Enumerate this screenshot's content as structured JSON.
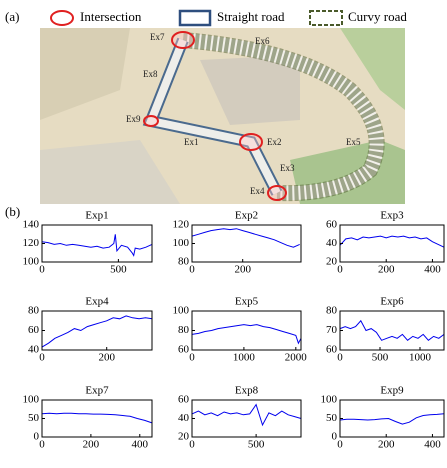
{
  "panel_a": {
    "label": "(a)",
    "legend": [
      "Intersection",
      "Straight road",
      "Curvy road"
    ],
    "map_labels": [
      "Ex1",
      "Ex2",
      "Ex3",
      "Ex4",
      "Ex5",
      "Ex6",
      "Ex7",
      "Ex8",
      "Ex9"
    ]
  },
  "panel_b": {
    "label": "(b)"
  },
  "chart_data": [
    {
      "type": "line",
      "title": "Exp1",
      "x": [
        0,
        40,
        80,
        120,
        160,
        200,
        240,
        280,
        320,
        360,
        400,
        440,
        470,
        480,
        490,
        520,
        560,
        590,
        600,
        610,
        640,
        680,
        720
      ],
      "series": [
        {
          "color": "#0000ee",
          "values": [
            122,
            121,
            119,
            120,
            118,
            119,
            118,
            117,
            116,
            117,
            115,
            116,
            120,
            130,
            112,
            118,
            116,
            110,
            107,
            115,
            114,
            116,
            119
          ]
        }
      ],
      "xlim": [
        0,
        720
      ],
      "xticks": [
        0,
        500
      ],
      "ylim": [
        100,
        140
      ],
      "yticks": [
        100,
        120,
        140
      ]
    },
    {
      "type": "line",
      "title": "Exp2",
      "x": [
        0,
        25,
        50,
        75,
        100,
        125,
        150,
        175,
        200,
        225,
        250,
        275,
        300,
        325,
        350,
        375,
        400,
        425
      ],
      "series": [
        {
          "color": "#0000ee",
          "values": [
            108,
            110,
            112,
            114,
            115,
            116,
            115,
            116,
            114,
            112,
            110,
            108,
            106,
            104,
            101,
            98,
            96,
            99
          ]
        }
      ],
      "xlim": [
        0,
        430
      ],
      "xticks": [
        0,
        200
      ],
      "ylim": [
        80,
        120
      ],
      "yticks": [
        80,
        100,
        120
      ]
    },
    {
      "type": "line",
      "title": "Exp3",
      "x": [
        0,
        25,
        50,
        75,
        100,
        125,
        150,
        175,
        200,
        225,
        250,
        275,
        300,
        325,
        350,
        375,
        400,
        425,
        450
      ],
      "series": [
        {
          "color": "#0000ee",
          "values": [
            38,
            45,
            46,
            44,
            47,
            46,
            47,
            48,
            46,
            48,
            47,
            48,
            46,
            47,
            45,
            46,
            42,
            39,
            36
          ]
        }
      ],
      "xlim": [
        0,
        450
      ],
      "xticks": [
        0,
        200,
        400
      ],
      "ylim": [
        20,
        60
      ],
      "yticks": [
        20,
        40,
        60
      ]
    },
    {
      "type": "line",
      "title": "Exp4",
      "x": [
        0,
        20,
        40,
        60,
        80,
        100,
        120,
        140,
        160,
        180,
        200,
        220,
        240,
        260,
        280,
        300,
        320,
        340
      ],
      "series": [
        {
          "color": "#0000ee",
          "values": [
            43,
            47,
            52,
            55,
            58,
            62,
            60,
            64,
            66,
            68,
            70,
            73,
            72,
            75,
            73,
            72,
            73,
            72
          ]
        }
      ],
      "xlim": [
        0,
        340
      ],
      "xticks": [
        0,
        200
      ],
      "ylim": [
        40,
        80
      ],
      "yticks": [
        40,
        60,
        80
      ]
    },
    {
      "type": "line",
      "title": "Exp5",
      "x": [
        0,
        125,
        250,
        375,
        500,
        625,
        750,
        875,
        1000,
        1125,
        1250,
        1375,
        1500,
        1625,
        1750,
        1875,
        2000,
        2050,
        2100
      ],
      "series": [
        {
          "color": "#0000ee",
          "values": [
            76,
            77,
            79,
            80,
            82,
            83,
            84,
            85,
            86,
            85,
            86,
            84,
            83,
            81,
            79,
            77,
            75,
            67,
            72
          ]
        }
      ],
      "xlim": [
        0,
        2100
      ],
      "xticks": [
        0,
        1000,
        2000
      ],
      "ylim": [
        60,
        100
      ],
      "yticks": [
        60,
        80,
        100
      ]
    },
    {
      "type": "line",
      "title": "Exp6",
      "x": [
        0,
        65,
        130,
        195,
        260,
        325,
        390,
        455,
        520,
        585,
        650,
        715,
        780,
        845,
        910,
        975,
        1040,
        1105,
        1170,
        1235,
        1300
      ],
      "series": [
        {
          "color": "#0000ee",
          "values": [
            71,
            72,
            71,
            72,
            75,
            70,
            71,
            69,
            65,
            66,
            67,
            66,
            68,
            65,
            67,
            66,
            68,
            65,
            67,
            66,
            68
          ]
        }
      ],
      "xlim": [
        0,
        1300
      ],
      "xticks": [
        0,
        500,
        1000
      ],
      "ylim": [
        60,
        80
      ],
      "yticks": [
        60,
        70,
        80
      ]
    },
    {
      "type": "line",
      "title": "Exp7",
      "x": [
        0,
        30,
        60,
        90,
        120,
        150,
        180,
        210,
        240,
        270,
        300,
        330,
        360,
        390,
        420,
        450
      ],
      "series": [
        {
          "color": "#0000ee",
          "values": [
            63,
            64,
            63,
            64,
            64,
            63,
            63,
            62,
            62,
            61,
            60,
            58,
            56,
            50,
            45,
            38
          ]
        }
      ],
      "xlim": [
        0,
        450
      ],
      "xticks": [
        0,
        200,
        400
      ],
      "ylim": [
        0,
        100
      ],
      "yticks": [
        0,
        50,
        100
      ]
    },
    {
      "type": "line",
      "title": "Exp8",
      "x": [
        0,
        50,
        100,
        150,
        200,
        250,
        300,
        350,
        400,
        450,
        500,
        550,
        600,
        650,
        700,
        750,
        800,
        850
      ],
      "series": [
        {
          "color": "#0000ee",
          "values": [
            45,
            48,
            44,
            46,
            43,
            47,
            45,
            46,
            44,
            45,
            55,
            33,
            46,
            43,
            48,
            44,
            42,
            40
          ]
        }
      ],
      "xlim": [
        0,
        850
      ],
      "xticks": [
        0,
        500
      ],
      "ylim": [
        20,
        60
      ],
      "yticks": [
        20,
        40,
        60
      ]
    },
    {
      "type": "line",
      "title": "Exp9",
      "x": [
        0,
        30,
        60,
        90,
        120,
        150,
        180,
        210,
        240,
        270,
        300,
        330,
        360,
        390,
        420,
        450
      ],
      "series": [
        {
          "color": "#0000ee",
          "values": [
            46,
            48,
            48,
            47,
            46,
            47,
            49,
            50,
            42,
            35,
            40,
            52,
            58,
            60,
            61,
            63
          ]
        }
      ],
      "xlim": [
        0,
        450
      ],
      "xticks": [
        0,
        200,
        400
      ],
      "ylim": [
        0,
        100
      ],
      "yticks": [
        0,
        50,
        100
      ]
    }
  ]
}
